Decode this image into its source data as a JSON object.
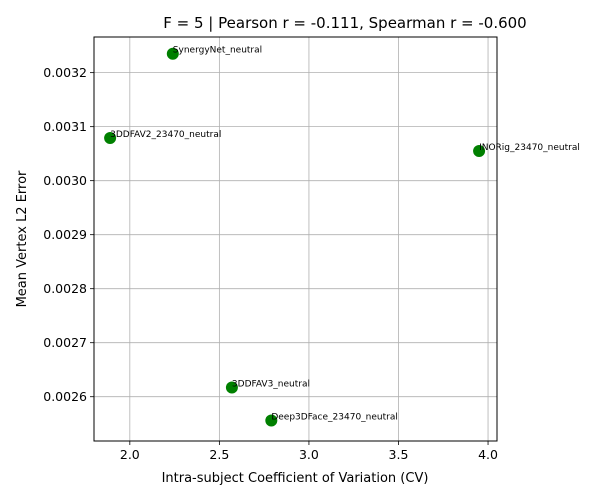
{
  "chart_data": {
    "type": "scatter",
    "title": "F = 5 | Pearson r = -0.111, Spearman r = -0.600",
    "xlabel": "Intra-subject Coefficient of Variation (CV)",
    "ylabel": "Mean Vertex L2 Error",
    "xlim": [
      1.8,
      4.05
    ],
    "ylim": [
      0.002518,
      0.003266
    ],
    "xticks": [
      "2.0",
      "2.5",
      "3.0",
      "3.5",
      "4.0"
    ],
    "yticks": [
      "0.0026",
      "0.0027",
      "0.0028",
      "0.0029",
      "0.0030",
      "0.0031",
      "0.0032"
    ],
    "grid": true,
    "marker_color": "#008000",
    "points": [
      {
        "label": "SynergyNet_neutral",
        "x": 2.24,
        "y": 0.003235
      },
      {
        "label": "3DDFAV2_23470_neutral",
        "x": 1.89,
        "y": 0.003079
      },
      {
        "label": "INORig_23470_neutral",
        "x": 3.95,
        "y": 0.003055
      },
      {
        "label": "3DDFAV3_neutral",
        "x": 2.57,
        "y": 0.002617
      },
      {
        "label": "Deep3DFace_23470_neutral",
        "x": 2.79,
        "y": 0.002556
      }
    ]
  }
}
